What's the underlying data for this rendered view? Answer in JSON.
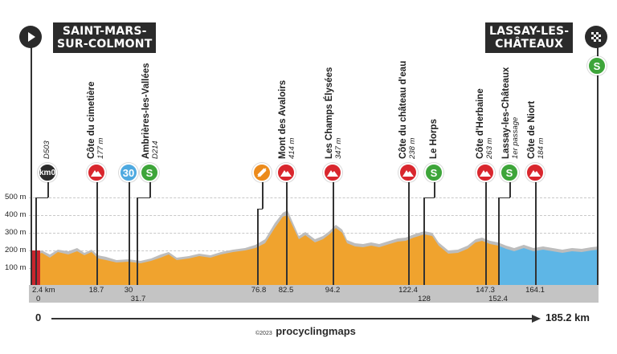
{
  "start": {
    "town_line1": "SAINT-MARS-",
    "town_line2": "SUR-COLMONT",
    "icon": "play-icon"
  },
  "finish": {
    "town_line1": "LASSAY-LES-",
    "town_line2": "CHÂTEAUX",
    "icon": "checkered-flag-icon",
    "sprint_badge": "S"
  },
  "elevation_axis": [
    "500 m",
    "400 m",
    "300 m",
    "200 m",
    "100 m"
  ],
  "markers": [
    {
      "type": "km0",
      "badge": "km0",
      "name": "",
      "sub": "D503",
      "km_label": "2.4 km"
    },
    {
      "type": "climb",
      "badge": "",
      "name": "Côte du cimetière",
      "sub": "177 m",
      "km_label": "18.7"
    },
    {
      "type": "km30",
      "badge": "30",
      "name": "",
      "sub": "",
      "km_label": "30"
    },
    {
      "type": "sprint",
      "badge": "S",
      "name": "Ambrières-les-Vallées",
      "sub": "D214",
      "km_label": "31.7"
    },
    {
      "type": "feed",
      "badge": "",
      "name": "",
      "sub": "",
      "km_label": "76.8"
    },
    {
      "type": "climb",
      "badge": "",
      "name": "Mont des Avaloirs",
      "sub": "414 m",
      "km_label": "82.5"
    },
    {
      "type": "climb",
      "badge": "",
      "name": "Les Champs Élysées",
      "sub": "347 m",
      "km_label": "94.2"
    },
    {
      "type": "climb",
      "badge": "",
      "name": "Côte du château d'eau",
      "sub": "238 m",
      "km_label": "122.4"
    },
    {
      "type": "sprint",
      "badge": "S",
      "name": "Le Horps",
      "sub": "",
      "km_label": "128"
    },
    {
      "type": "climb",
      "badge": "",
      "name": "Côte d'Herbaine",
      "sub": "263 m",
      "km_label": "147.3"
    },
    {
      "type": "sprint",
      "badge": "S",
      "name": "Lassay-les-Châteaux",
      "sub": "1er passage",
      "km_label": "152.4"
    },
    {
      "type": "climb",
      "badge": "",
      "name": "Côte de Niort",
      "sub": "184 m",
      "km_label": "164.1"
    }
  ],
  "distance_start": "0",
  "distance_start_small": "0",
  "distance_total": "185.2 km",
  "branding": {
    "year": "©2023",
    "brand": "procyclingmaps"
  },
  "colors": {
    "profile_orange": "#f0a32e",
    "profile_blue": "#5eb6e6",
    "climb_red": "#d9272e",
    "sprint_green": "#3ea53a",
    "start_red": "#c9252d"
  }
}
